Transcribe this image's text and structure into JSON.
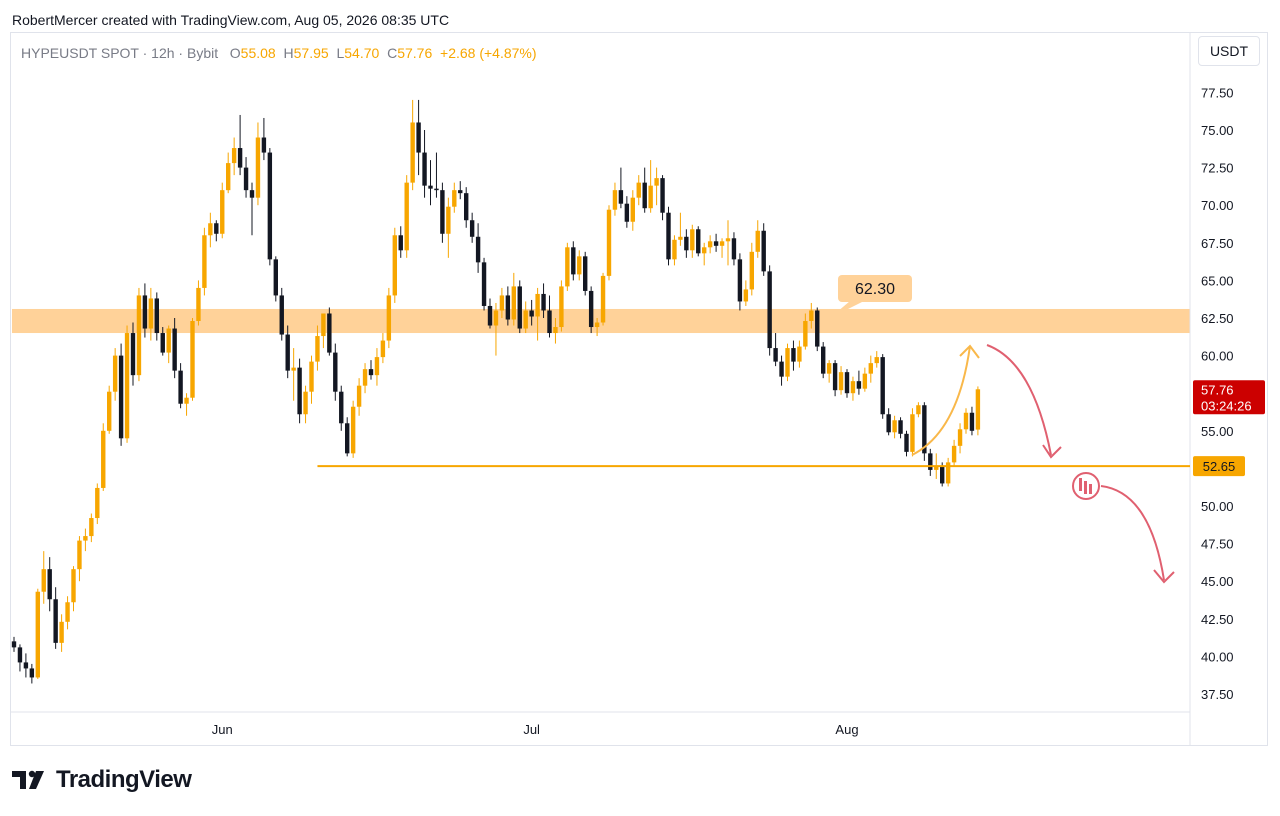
{
  "header": {
    "text": "RobertMercer created with TradingView.com, Aug 05, 2026 08:35 UTC"
  },
  "legend": {
    "symbol": "HYPEUSDT SPOT · 12h · Bybit",
    "open_label": "O",
    "open": "55.08",
    "high_label": "H",
    "high": "57.95",
    "low_label": "L",
    "low": "54.70",
    "close_label": "C",
    "close": "57.76",
    "change": "+2.68 (+4.87%)"
  },
  "currency": "USDT",
  "footer": {
    "brand": "TradingView"
  },
  "colors": {
    "up": "#f7a600",
    "down": "#131722",
    "zone": "#ffd299",
    "support": "#f7a600",
    "bear_arrow": "#e06070",
    "bull_arrow": "#f9b84a",
    "price_tag": "#cc0000"
  },
  "chart_data": {
    "type": "candlestick",
    "ylim": [
      36.5,
      79.5
    ],
    "y_ticks": [
      "77.50",
      "75.00",
      "72.50",
      "70.00",
      "67.50",
      "65.00",
      "62.50",
      "60.00",
      "55.00",
      "50.00",
      "47.50",
      "45.00",
      "42.50",
      "40.00",
      "37.50"
    ],
    "y_tick_values": [
      77.5,
      75,
      72.5,
      70,
      67.5,
      65,
      62.5,
      60,
      55,
      50,
      47.5,
      45,
      42.5,
      40,
      37.5
    ],
    "x_labels": [
      {
        "label": "Jun",
        "index": 35
      },
      {
        "label": "Jul",
        "index": 87
      },
      {
        "label": "Aug",
        "index": 140
      }
    ],
    "candles": [
      [
        41.0,
        41.3,
        40.3,
        40.6
      ],
      [
        40.6,
        40.8,
        39.0,
        39.6
      ],
      [
        39.6,
        40.2,
        38.6,
        39.2
      ],
      [
        39.2,
        39.5,
        38.2,
        38.6
      ],
      [
        38.6,
        44.5,
        38.5,
        44.3
      ],
      [
        44.3,
        47.0,
        43.5,
        45.8
      ],
      [
        45.8,
        46.6,
        43.0,
        43.8
      ],
      [
        43.8,
        44.6,
        40.5,
        40.9
      ],
      [
        40.9,
        42.8,
        40.3,
        42.3
      ],
      [
        42.3,
        44.0,
        41.8,
        43.6
      ],
      [
        43.6,
        46.0,
        43.0,
        45.8
      ],
      [
        45.8,
        48.0,
        45.0,
        47.7
      ],
      [
        47.7,
        48.5,
        47.0,
        48.0
      ],
      [
        48.0,
        49.5,
        47.6,
        49.2
      ],
      [
        49.2,
        51.5,
        48.8,
        51.2
      ],
      [
        51.2,
        55.5,
        51.0,
        55.0
      ],
      [
        55.0,
        58.0,
        54.8,
        57.6
      ],
      [
        57.6,
        60.5,
        57.0,
        60.0
      ],
      [
        60.0,
        60.8,
        54.0,
        54.5
      ],
      [
        54.5,
        62.0,
        54.2,
        61.5
      ],
      [
        61.5,
        62.2,
        58.0,
        58.7
      ],
      [
        58.7,
        64.5,
        58.3,
        64.0
      ],
      [
        64.0,
        64.8,
        61.2,
        61.8
      ],
      [
        61.8,
        64.5,
        61.0,
        63.8
      ],
      [
        63.8,
        64.2,
        61.0,
        61.5
      ],
      [
        61.5,
        61.9,
        60.0,
        60.2
      ],
      [
        60.2,
        62.0,
        59.5,
        61.8
      ],
      [
        61.8,
        62.5,
        58.5,
        59.0
      ],
      [
        59.0,
        59.5,
        56.5,
        56.8
      ],
      [
        56.8,
        57.5,
        56.0,
        57.2
      ],
      [
        57.2,
        62.5,
        57.0,
        62.3
      ],
      [
        62.3,
        65.0,
        62.0,
        64.5
      ],
      [
        64.5,
        68.5,
        64.0,
        68.0
      ],
      [
        68.0,
        69.5,
        67.2,
        68.8
      ],
      [
        68.8,
        69.0,
        67.6,
        68.1
      ],
      [
        68.1,
        71.5,
        67.8,
        71.0
      ],
      [
        71.0,
        73.5,
        70.8,
        72.8
      ],
      [
        72.8,
        74.5,
        72.0,
        73.8
      ],
      [
        73.8,
        76.0,
        72.0,
        72.5
      ],
      [
        72.5,
        73.2,
        70.5,
        71.0
      ],
      [
        71.0,
        71.5,
        68.0,
        70.5
      ],
      [
        70.5,
        75.5,
        70.0,
        74.5
      ],
      [
        74.5,
        75.8,
        73.0,
        73.5
      ],
      [
        73.5,
        73.8,
        66.0,
        66.4
      ],
      [
        66.4,
        66.6,
        63.6,
        64.0
      ],
      [
        64.0,
        64.5,
        61.0,
        61.4
      ],
      [
        61.4,
        62.0,
        58.5,
        59.0
      ],
      [
        59.0,
        60.5,
        57.0,
        59.2
      ],
      [
        59.2,
        59.8,
        55.5,
        56.1
      ],
      [
        56.1,
        58.0,
        55.5,
        57.6
      ],
      [
        57.6,
        60.0,
        56.8,
        59.6
      ],
      [
        59.6,
        62.0,
        59.0,
        61.3
      ],
      [
        61.3,
        62.5,
        60.5,
        62.8
      ],
      [
        62.8,
        63.2,
        60.0,
        60.2
      ],
      [
        60.2,
        60.8,
        57.0,
        57.6
      ],
      [
        57.6,
        58.0,
        55.0,
        55.5
      ],
      [
        55.5,
        55.9,
        53.3,
        53.5
      ],
      [
        53.5,
        57.0,
        53.2,
        56.6
      ],
      [
        56.6,
        58.5,
        56.0,
        58.0
      ],
      [
        58.0,
        59.5,
        57.5,
        59.1
      ],
      [
        59.1,
        59.7,
        58.4,
        58.7
      ],
      [
        58.7,
        60.5,
        58.0,
        59.9
      ],
      [
        59.9,
        61.5,
        59.5,
        61.0
      ],
      [
        61.0,
        64.5,
        60.5,
        64.0
      ],
      [
        64.0,
        68.5,
        63.5,
        68.0
      ],
      [
        68.0,
        68.6,
        66.5,
        67.0
      ],
      [
        67.0,
        72.0,
        66.5,
        71.5
      ],
      [
        71.5,
        77.0,
        71.0,
        75.5
      ],
      [
        75.5,
        77.0,
        72.0,
        73.5
      ],
      [
        73.5,
        75.0,
        70.5,
        71.3
      ],
      [
        71.3,
        73.0,
        70.0,
        71.1
      ],
      [
        71.1,
        73.5,
        70.5,
        71.0
      ],
      [
        71.0,
        71.5,
        67.5,
        68.1
      ],
      [
        68.1,
        70.5,
        66.5,
        69.9
      ],
      [
        69.9,
        71.5,
        69.5,
        71.0
      ],
      [
        71.0,
        71.6,
        70.4,
        70.8
      ],
      [
        70.8,
        71.2,
        68.5,
        69.0
      ],
      [
        69.0,
        69.5,
        67.5,
        67.9
      ],
      [
        67.9,
        68.8,
        65.5,
        66.2
      ],
      [
        66.2,
        66.5,
        63.0,
        63.3
      ],
      [
        63.3,
        63.8,
        61.8,
        62.0
      ],
      [
        62.0,
        63.5,
        60.0,
        63.0
      ],
      [
        63.0,
        64.5,
        62.5,
        64.0
      ],
      [
        64.0,
        64.6,
        62.0,
        62.4
      ],
      [
        62.4,
        65.5,
        62.0,
        64.6
      ],
      [
        64.6,
        65.0,
        61.5,
        61.8
      ],
      [
        61.8,
        63.6,
        61.5,
        63.0
      ],
      [
        63.0,
        63.7,
        62.0,
        62.6
      ],
      [
        62.6,
        64.5,
        61.0,
        64.1
      ],
      [
        64.1,
        64.8,
        62.5,
        63.0
      ],
      [
        63.0,
        64.0,
        61.2,
        61.5
      ],
      [
        61.5,
        62.5,
        60.8,
        61.9
      ],
      [
        61.9,
        65.0,
        61.6,
        64.6
      ],
      [
        64.6,
        67.5,
        64.3,
        67.2
      ],
      [
        67.2,
        67.6,
        65.0,
        65.4
      ],
      [
        65.4,
        67.0,
        65.0,
        66.6
      ],
      [
        66.6,
        66.9,
        64.0,
        64.3
      ],
      [
        64.3,
        64.6,
        61.5,
        61.9
      ],
      [
        61.9,
        62.5,
        61.3,
        62.2
      ],
      [
        62.2,
        65.5,
        62.0,
        65.3
      ],
      [
        65.3,
        70.0,
        65.0,
        69.7
      ],
      [
        69.7,
        71.5,
        69.3,
        71.0
      ],
      [
        71.0,
        72.5,
        69.8,
        70.1
      ],
      [
        70.1,
        70.6,
        68.5,
        68.9
      ],
      [
        68.9,
        71.0,
        68.3,
        70.5
      ],
      [
        70.5,
        72.0,
        70.0,
        71.5
      ],
      [
        71.5,
        72.5,
        69.5,
        69.8
      ],
      [
        69.8,
        73.0,
        69.5,
        71.3
      ],
      [
        71.3,
        72.5,
        70.0,
        71.8
      ],
      [
        71.8,
        72.0,
        69.0,
        69.5
      ],
      [
        69.5,
        69.9,
        66.0,
        66.4
      ],
      [
        66.4,
        68.0,
        66.0,
        67.7
      ],
      [
        67.7,
        69.5,
        67.3,
        67.9
      ],
      [
        67.9,
        68.4,
        66.5,
        67.0
      ],
      [
        67.0,
        68.7,
        66.5,
        68.4
      ],
      [
        68.4,
        68.6,
        66.6,
        66.8
      ],
      [
        66.8,
        67.5,
        66.0,
        67.2
      ],
      [
        67.2,
        68.0,
        66.8,
        67.6
      ],
      [
        67.6,
        68.1,
        66.9,
        67.3
      ],
      [
        67.3,
        67.8,
        66.5,
        67.6
      ],
      [
        67.6,
        69.0,
        66.0,
        67.8
      ],
      [
        67.8,
        68.2,
        66.0,
        66.4
      ],
      [
        66.4,
        66.8,
        63.0,
        63.6
      ],
      [
        63.6,
        65.0,
        63.3,
        64.4
      ],
      [
        64.4,
        67.5,
        64.0,
        66.9
      ],
      [
        66.9,
        69.0,
        66.5,
        68.3
      ],
      [
        68.3,
        68.8,
        65.3,
        65.6
      ],
      [
        65.6,
        66.0,
        60.0,
        60.5
      ],
      [
        60.5,
        61.5,
        59.3,
        59.6
      ],
      [
        59.6,
        60.0,
        58.0,
        58.6
      ],
      [
        58.6,
        60.8,
        58.3,
        60.5
      ],
      [
        60.5,
        61.0,
        59.0,
        59.6
      ],
      [
        59.6,
        61.0,
        59.2,
        60.6
      ],
      [
        60.6,
        62.8,
        60.4,
        62.3
      ],
      [
        62.3,
        63.5,
        61.8,
        63.0
      ],
      [
        63.0,
        63.2,
        60.3,
        60.6
      ],
      [
        60.6,
        60.9,
        58.5,
        58.8
      ],
      [
        58.8,
        59.7,
        58.2,
        59.5
      ],
      [
        59.5,
        59.7,
        57.3,
        57.7
      ],
      [
        57.7,
        59.3,
        57.4,
        58.9
      ],
      [
        58.9,
        59.1,
        57.2,
        57.5
      ],
      [
        57.5,
        58.6,
        57.0,
        58.3
      ],
      [
        58.3,
        59.0,
        57.4,
        57.8
      ],
      [
        57.8,
        59.2,
        57.6,
        58.8
      ],
      [
        58.8,
        60.0,
        58.2,
        59.5
      ],
      [
        59.5,
        60.3,
        59.2,
        59.9
      ],
      [
        59.9,
        60.1,
        55.8,
        56.1
      ],
      [
        56.1,
        56.5,
        54.7,
        54.9
      ],
      [
        54.9,
        56.0,
        54.5,
        55.7
      ],
      [
        55.7,
        55.9,
        54.5,
        54.8
      ],
      [
        54.8,
        55.0,
        53.3,
        53.6
      ],
      [
        53.6,
        56.5,
        53.3,
        56.1
      ],
      [
        56.1,
        56.9,
        55.9,
        56.7
      ],
      [
        56.7,
        56.9,
        53.0,
        53.5
      ],
      [
        53.5,
        53.8,
        52.0,
        52.4
      ],
      [
        52.4,
        53.5,
        51.8,
        52.6
      ],
      [
        52.6,
        52.9,
        51.3,
        51.5
      ],
      [
        51.5,
        53.2,
        51.3,
        52.9
      ],
      [
        52.9,
        54.4,
        52.6,
        54.0
      ],
      [
        54.0,
        55.5,
        53.5,
        55.1
      ],
      [
        55.1,
        56.5,
        54.8,
        56.2
      ],
      [
        56.2,
        56.6,
        54.7,
        55.0
      ],
      [
        55.08,
        57.95,
        54.7,
        57.76
      ]
    ],
    "resistance_zone": {
      "low": 61.5,
      "high": 63.1,
      "label": "62.30"
    },
    "support_line": {
      "value": 52.65,
      "label": "52.65",
      "from_index": 51
    },
    "last_price": {
      "value": 57.76,
      "label": "57.76",
      "countdown": "03:24:26"
    }
  }
}
